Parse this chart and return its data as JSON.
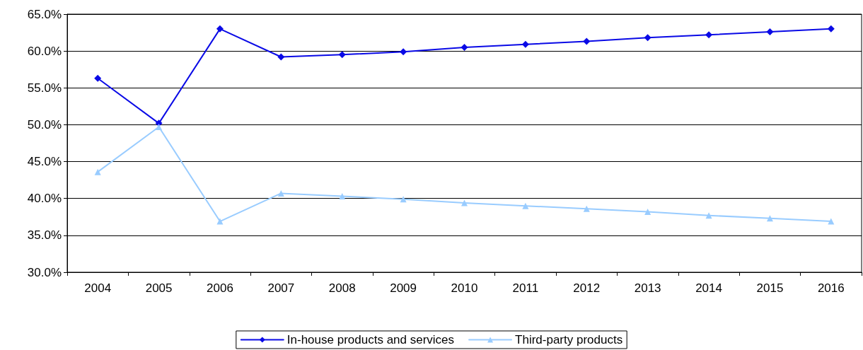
{
  "chart_data": {
    "type": "line",
    "categories": [
      "2004",
      "2005",
      "2006",
      "2007",
      "2008",
      "2009",
      "2010",
      "2011",
      "2012",
      "2013",
      "2014",
      "2015",
      "2016"
    ],
    "series": [
      {
        "name": "In-house products and services",
        "color": "#0a0ae6",
        "marker": "diamond",
        "values": [
          56.3,
          50.2,
          63.0,
          59.2,
          59.5,
          59.9,
          60.5,
          60.9,
          61.3,
          61.8,
          62.2,
          62.6,
          63.0
        ]
      },
      {
        "name": "Third-party products",
        "color": "#99ccff",
        "marker": "triangle",
        "values": [
          43.6,
          49.7,
          36.9,
          40.7,
          40.3,
          39.9,
          39.4,
          39.0,
          38.6,
          38.2,
          37.7,
          37.3,
          36.9
        ]
      }
    ],
    "ylim": [
      30,
      65
    ],
    "yticks": [
      {
        "value": 30,
        "label": "30.0%"
      },
      {
        "value": 35,
        "label": "35.0%"
      },
      {
        "value": 40,
        "label": "40.0%"
      },
      {
        "value": 45,
        "label": "45.0%"
      },
      {
        "value": 50,
        "label": "50.0%"
      },
      {
        "value": 55,
        "label": "55.0%"
      },
      {
        "value": 60,
        "label": "60.0%"
      },
      {
        "value": 65,
        "label": "65.0%"
      }
    ],
    "grid": "y",
    "legend": "bottom",
    "line_style": "solid"
  }
}
